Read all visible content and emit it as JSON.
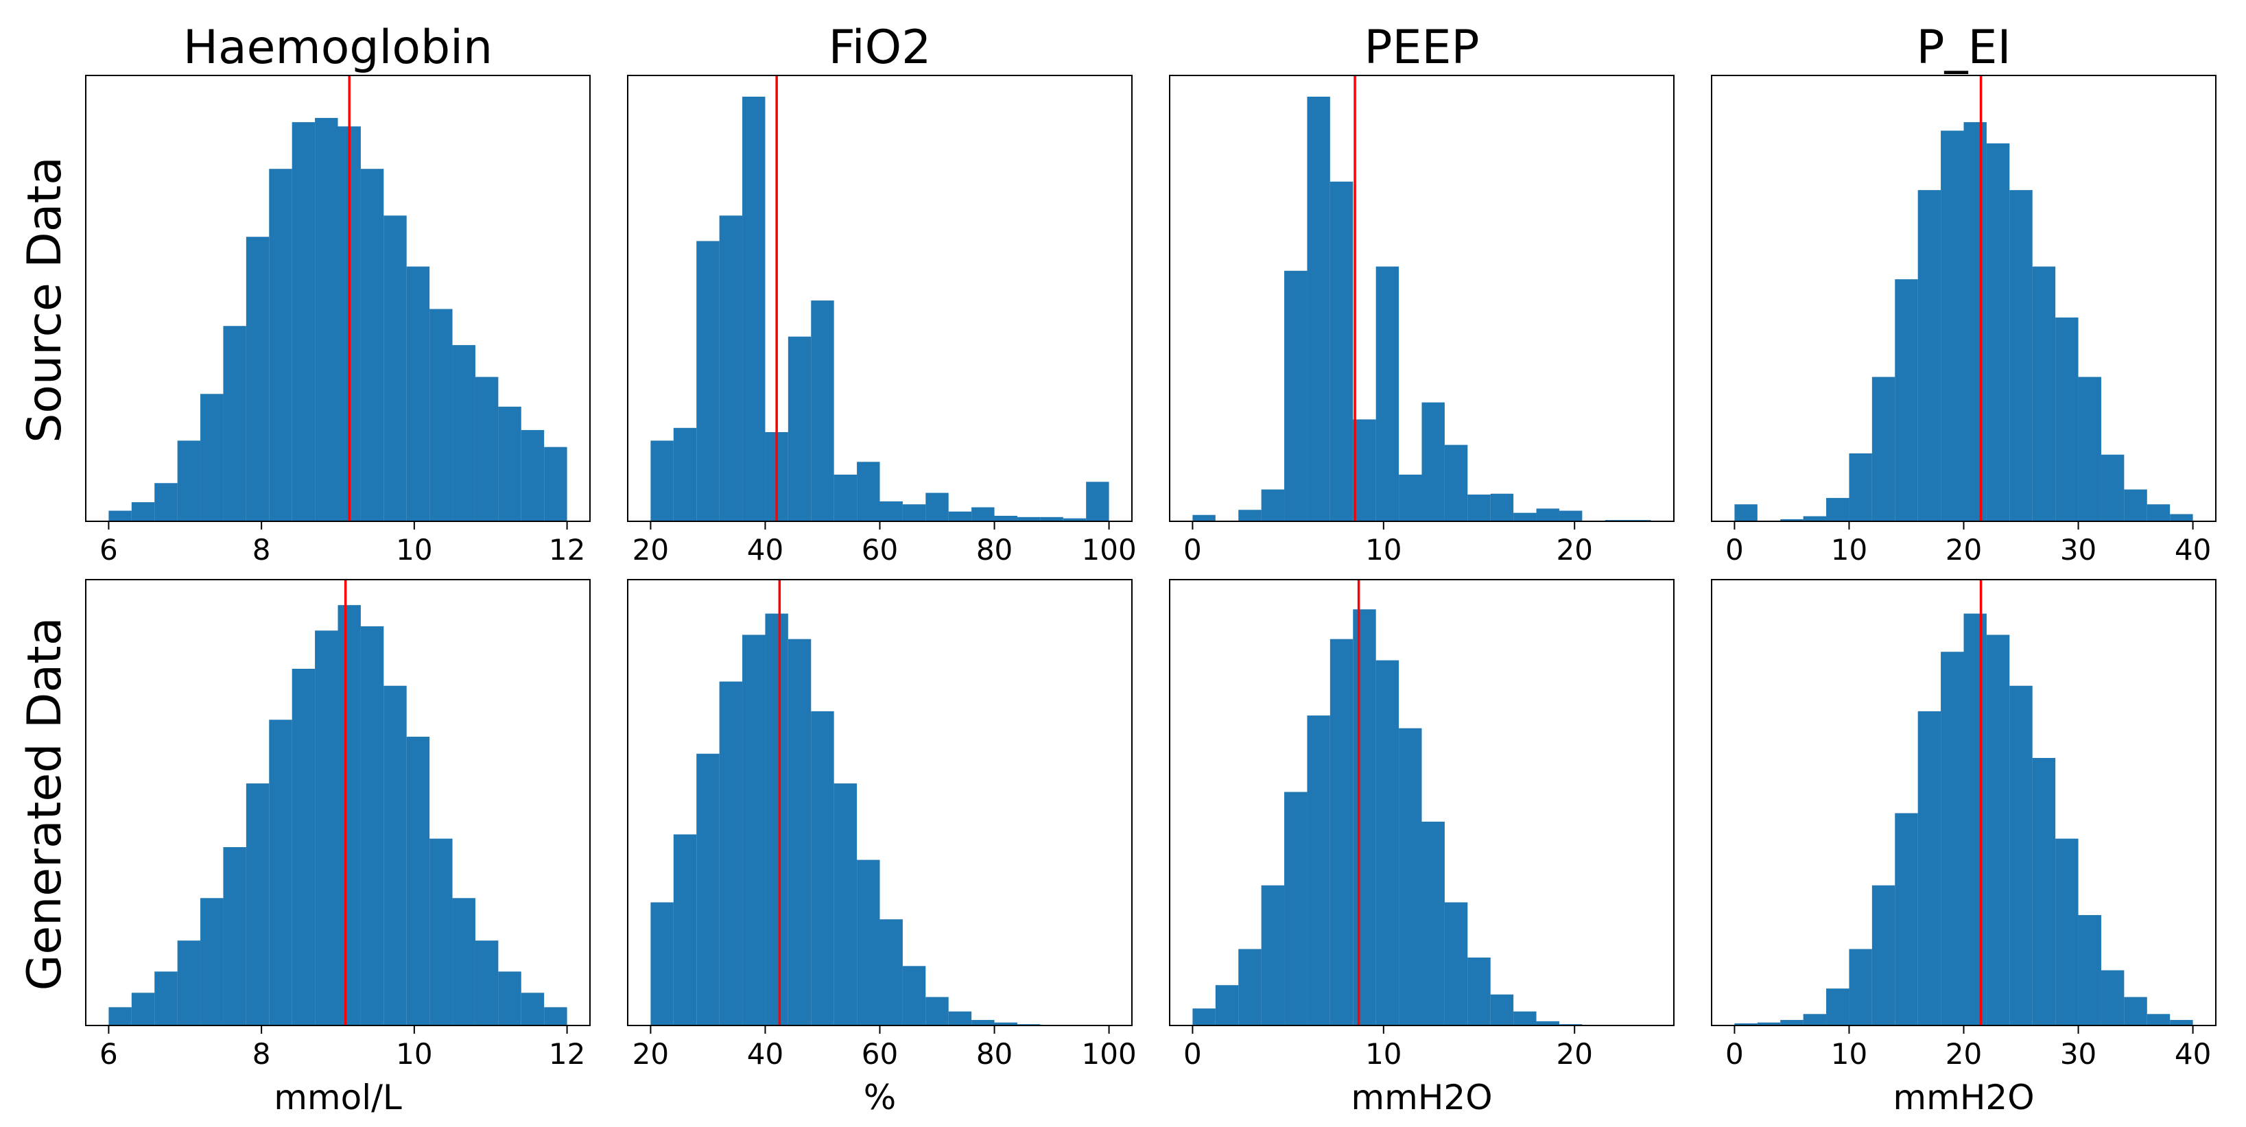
{
  "figure": {
    "row_labels": [
      "Source Data",
      "Generated Data"
    ],
    "bar_color": "#1f77b4",
    "mean_line_color": "#ff0000"
  },
  "chart_data": [
    {
      "type": "histogram",
      "row": 0,
      "col": 0,
      "title": "Haemoglobin",
      "xlabel": "",
      "ylabel": "Source Data",
      "xlim": [
        5.7,
        12.3
      ],
      "ylim": [
        0,
        1.05
      ],
      "bin_edges": [
        6.0,
        6.3,
        6.6,
        6.9,
        7.2,
        7.5,
        7.8,
        8.1,
        8.4,
        8.7,
        9.0,
        9.3,
        9.6,
        9.9,
        10.2,
        10.5,
        10.8,
        11.1,
        11.4,
        11.7,
        12.0
      ],
      "values": [
        0.025,
        0.045,
        0.09,
        0.19,
        0.3,
        0.46,
        0.67,
        0.83,
        0.94,
        0.95,
        0.93,
        0.83,
        0.72,
        0.6,
        0.5,
        0.415,
        0.34,
        0.27,
        0.215,
        0.175
      ],
      "mean": 9.15,
      "xticks": [
        6,
        8,
        10,
        12
      ]
    },
    {
      "type": "histogram",
      "row": 0,
      "col": 1,
      "title": "FiO2",
      "xlabel": "",
      "ylabel": "",
      "xlim": [
        16,
        104
      ],
      "ylim": [
        0,
        1.05
      ],
      "bin_edges": [
        20,
        24,
        28,
        32,
        36,
        40,
        44,
        48,
        52,
        56,
        60,
        64,
        68,
        72,
        76,
        80,
        84,
        88,
        92,
        96,
        100
      ],
      "values": [
        0.19,
        0.22,
        0.66,
        0.72,
        1.0,
        0.21,
        0.435,
        0.52,
        0.11,
        0.14,
        0.047,
        0.04,
        0.067,
        0.023,
        0.033,
        0.013,
        0.01,
        0.01,
        0.007,
        0.093
      ],
      "mean": 42,
      "xticks": [
        20,
        40,
        60,
        80,
        100
      ]
    },
    {
      "type": "histogram",
      "row": 0,
      "col": 2,
      "title": "PEEP",
      "xlabel": "",
      "ylabel": "",
      "xlim": [
        -1.2,
        25.2
      ],
      "ylim": [
        0,
        1.05
      ],
      "bin_edges": [
        0,
        1.2,
        2.4,
        3.6,
        4.8,
        6.0,
        7.2,
        8.4,
        9.6,
        10.8,
        12.0,
        13.2,
        14.4,
        15.6,
        16.8,
        18.0,
        19.2,
        20.4,
        21.6,
        22.8,
        24.0
      ],
      "values": [
        0.015,
        0.0,
        0.027,
        0.075,
        0.59,
        1.0,
        0.8,
        0.24,
        0.6,
        0.11,
        0.28,
        0.18,
        0.063,
        0.065,
        0.02,
        0.03,
        0.025,
        0.0,
        0.003,
        0.003
      ],
      "mean": 8.5,
      "xticks": [
        0,
        10,
        20
      ]
    },
    {
      "type": "histogram",
      "row": 0,
      "col": 3,
      "title": "P_EI",
      "xlabel": "",
      "ylabel": "",
      "xlim": [
        -2,
        42
      ],
      "ylim": [
        0,
        1.05
      ],
      "bin_edges": [
        0,
        2,
        4,
        6,
        8,
        10,
        12,
        14,
        16,
        18,
        20,
        22,
        24,
        26,
        28,
        30,
        32,
        34,
        36,
        38,
        40
      ],
      "values": [
        0.04,
        0.0,
        0.005,
        0.012,
        0.055,
        0.16,
        0.34,
        0.57,
        0.78,
        0.92,
        0.94,
        0.89,
        0.78,
        0.6,
        0.48,
        0.34,
        0.157,
        0.075,
        0.04,
        0.017
      ],
      "mean": 21.5,
      "xticks": [
        0,
        10,
        20,
        30,
        40
      ]
    },
    {
      "type": "histogram",
      "row": 1,
      "col": 0,
      "title": "",
      "xlabel": "mmol/L",
      "ylabel": "Generated Data",
      "xlim": [
        5.7,
        12.3
      ],
      "ylim": [
        0,
        1.05
      ],
      "bin_edges": [
        6.0,
        6.3,
        6.6,
        6.9,
        7.2,
        7.5,
        7.8,
        8.1,
        8.4,
        8.7,
        9.0,
        9.3,
        9.6,
        9.9,
        10.2,
        10.5,
        10.8,
        11.1,
        11.4,
        11.7,
        12.0
      ],
      "values": [
        0.043,
        0.077,
        0.127,
        0.2,
        0.3,
        0.42,
        0.57,
        0.72,
        0.84,
        0.93,
        0.99,
        0.94,
        0.8,
        0.68,
        0.44,
        0.3,
        0.2,
        0.127,
        0.077,
        0.043
      ],
      "mean": 9.1,
      "xticks": [
        6,
        8,
        10,
        12
      ]
    },
    {
      "type": "histogram",
      "row": 1,
      "col": 1,
      "title": "",
      "xlabel": "%",
      "ylabel": "",
      "xlim": [
        16,
        104
      ],
      "ylim": [
        0,
        1.05
      ],
      "bin_edges": [
        20,
        24,
        28,
        32,
        36,
        40,
        44,
        48,
        52,
        56,
        60,
        64,
        68,
        72,
        76,
        80,
        84,
        88,
        92,
        96,
        100
      ],
      "values": [
        0.29,
        0.45,
        0.64,
        0.81,
        0.92,
        0.97,
        0.91,
        0.74,
        0.57,
        0.39,
        0.25,
        0.14,
        0.067,
        0.033,
        0.013,
        0.007,
        0.003,
        0.0,
        0.0,
        0.0
      ],
      "mean": 42.5,
      "xticks": [
        20,
        40,
        60,
        80,
        100
      ]
    },
    {
      "type": "histogram",
      "row": 1,
      "col": 2,
      "title": "",
      "xlabel": "mmH2O",
      "ylabel": "",
      "xlim": [
        -1.2,
        25.2
      ],
      "ylim": [
        0,
        1.05
      ],
      "bin_edges": [
        0.0,
        1.2,
        2.4,
        3.6,
        4.8,
        6.0,
        7.2,
        8.4,
        9.6,
        10.8,
        12.0,
        13.2,
        14.4,
        15.6,
        16.8,
        18.0,
        19.2,
        20.4,
        21.6,
        22.8,
        24.0
      ],
      "values": [
        0.04,
        0.095,
        0.18,
        0.33,
        0.55,
        0.73,
        0.91,
        0.98,
        0.86,
        0.7,
        0.48,
        0.29,
        0.16,
        0.073,
        0.033,
        0.01,
        0.003,
        0.0,
        0.0,
        0.0
      ],
      "mean": 8.7,
      "xticks": [
        0,
        10,
        20
      ]
    },
    {
      "type": "histogram",
      "row": 1,
      "col": 3,
      "title": "",
      "xlabel": "mmH2O",
      "ylabel": "",
      "xlim": [
        -2,
        42
      ],
      "ylim": [
        0,
        1.05
      ],
      "bin_edges": [
        0,
        2,
        4,
        6,
        8,
        10,
        12,
        14,
        16,
        18,
        20,
        22,
        24,
        26,
        28,
        30,
        32,
        34,
        36,
        38,
        40
      ],
      "values": [
        0.005,
        0.007,
        0.013,
        0.027,
        0.087,
        0.18,
        0.33,
        0.5,
        0.74,
        0.88,
        0.97,
        0.92,
        0.8,
        0.63,
        0.44,
        0.26,
        0.13,
        0.067,
        0.027,
        0.013
      ],
      "mean": 21.5,
      "xticks": [
        0,
        10,
        20,
        30,
        40
      ]
    }
  ]
}
